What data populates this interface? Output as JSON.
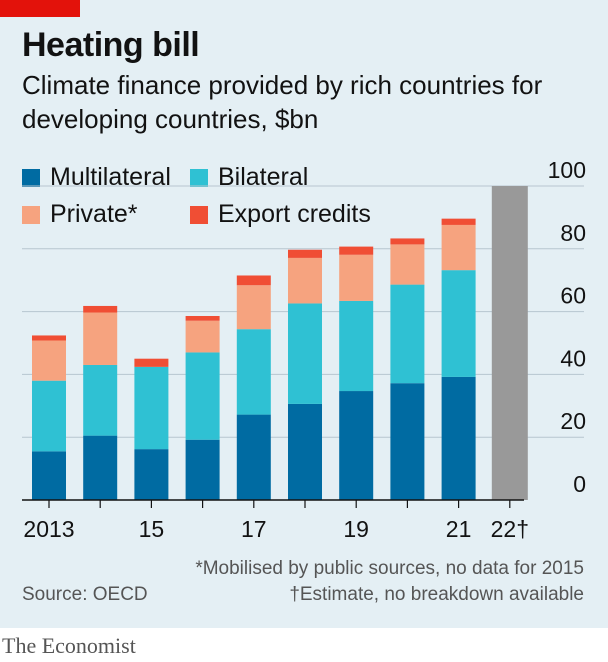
{
  "header": {
    "title": "Heating bill",
    "subtitle": "Climate finance provided by rich countries for developing countries, $bn"
  },
  "legend": [
    {
      "label": "Multilateral",
      "color": "#006ba2"
    },
    {
      "label": "Bilateral",
      "color": "#2fc1d3"
    },
    {
      "label": "Private*",
      "color": "#f6a37f"
    },
    {
      "label": "Export credits",
      "color": "#f04e34"
    }
  ],
  "footer": {
    "note1": "*Mobilised by public sources, no data for 2015",
    "note2": "†Estimate, no breakdown available",
    "source": "Source: OECD",
    "brand": "The Economist"
  },
  "chart_data": {
    "type": "bar",
    "stacked": true,
    "categories": [
      "2013",
      "14",
      "15",
      "16",
      "17",
      "18",
      "19",
      "20",
      "21",
      "22†"
    ],
    "x_tick_labels": [
      "2013",
      "",
      "15",
      "",
      "17",
      "",
      "19",
      "",
      "21",
      "22†"
    ],
    "series": [
      {
        "name": "Multilateral",
        "color": "#006ba2",
        "values": [
          15.5,
          20.5,
          16.2,
          19.2,
          27.2,
          30.6,
          34.7,
          37.2,
          39.2,
          null
        ]
      },
      {
        "name": "Bilateral",
        "color": "#2fc1d3",
        "values": [
          22.5,
          22.5,
          26.2,
          27.8,
          27.2,
          32.0,
          28.7,
          31.4,
          34.0,
          null
        ]
      },
      {
        "name": "Private*",
        "color": "#f6a37f",
        "values": [
          12.8,
          16.7,
          0,
          10.1,
          14.0,
          14.5,
          14.7,
          12.8,
          14.4,
          null
        ]
      },
      {
        "name": "Export credits",
        "color": "#f04e34",
        "values": [
          1.6,
          2.1,
          2.6,
          1.5,
          3.1,
          2.6,
          2.6,
          1.9,
          2.0,
          null
        ]
      }
    ],
    "estimate": {
      "category": "22†",
      "value": 100,
      "color": "#999999"
    },
    "ylim": [
      0,
      100
    ],
    "yticks": [
      0,
      20,
      40,
      60,
      80,
      100
    ],
    "y_axis_side": "right",
    "grid": true
  }
}
